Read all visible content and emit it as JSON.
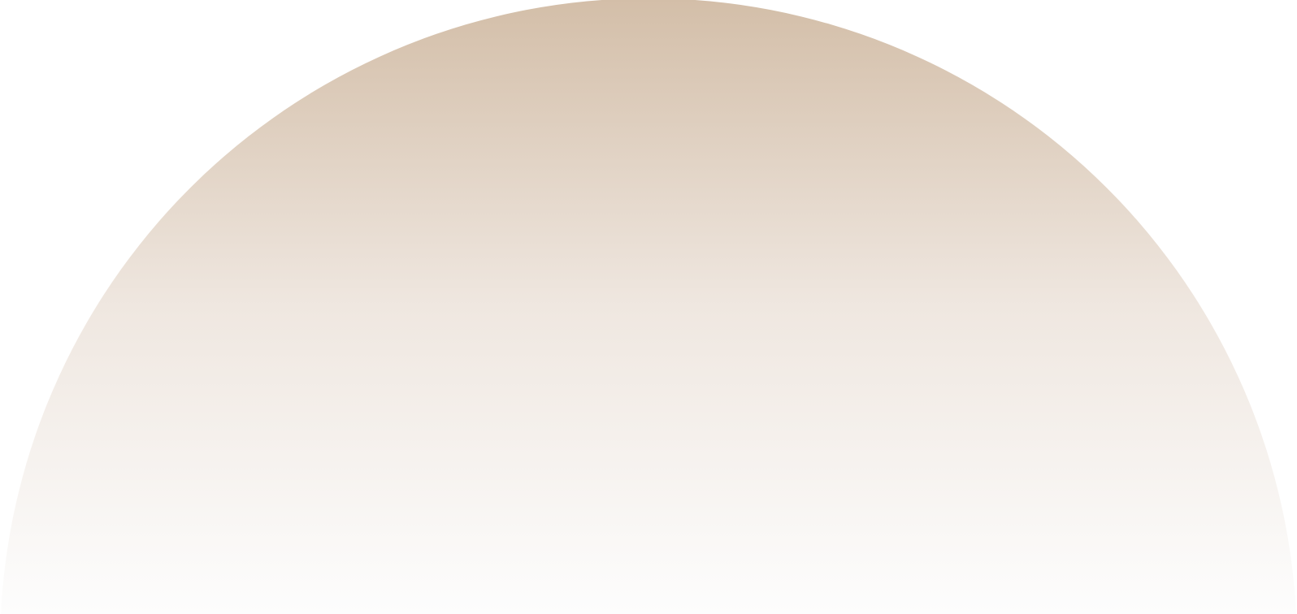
{
  "colors": {
    "gradient_top": "#d3bea8",
    "gradient_middle": "#efe7e0",
    "gradient_bottom": "#fdfdfd",
    "background": "#ffffff"
  }
}
